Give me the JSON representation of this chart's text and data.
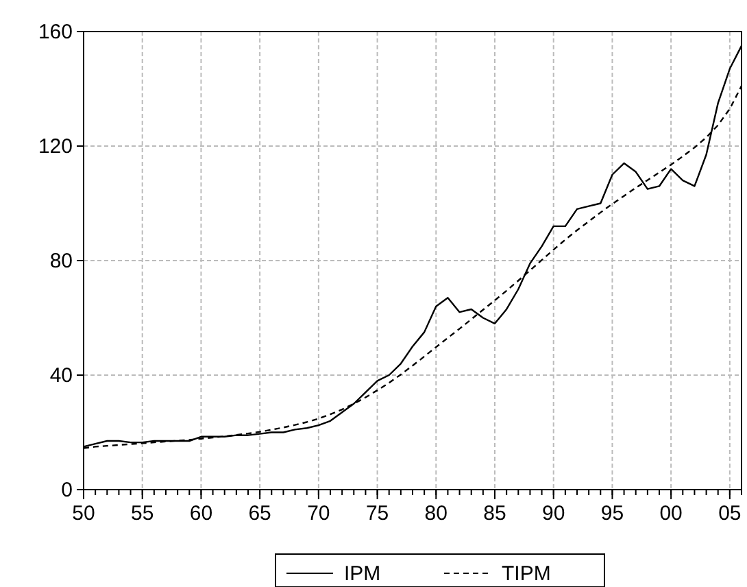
{
  "chart_data": {
    "type": "line",
    "x": [
      1950,
      1951,
      1952,
      1953,
      1954,
      1955,
      1956,
      1957,
      1958,
      1959,
      1960,
      1961,
      1962,
      1963,
      1964,
      1965,
      1966,
      1967,
      1968,
      1969,
      1970,
      1971,
      1972,
      1973,
      1974,
      1975,
      1976,
      1977,
      1978,
      1979,
      1980,
      1981,
      1982,
      1983,
      1984,
      1985,
      1986,
      1987,
      1988,
      1989,
      1990,
      1991,
      1992,
      1993,
      1994,
      1995,
      1996,
      1997,
      1998,
      1999,
      2000,
      2001,
      2002,
      2003,
      2004,
      2005,
      2006
    ],
    "series": [
      {
        "name": "IPM",
        "color": "#000000",
        "line_style": "solid",
        "values": [
          15,
          16,
          17,
          17,
          16.5,
          16.5,
          17,
          17,
          17,
          17,
          18.5,
          18.5,
          18.5,
          19,
          19,
          19.5,
          20,
          20,
          21,
          21.5,
          22.5,
          24,
          27,
          30,
          34,
          38,
          40,
          44,
          50,
          55,
          64,
          67,
          62,
          63,
          60,
          58,
          63,
          70,
          79,
          85,
          92,
          92,
          98,
          99,
          100,
          110,
          114,
          111,
          105,
          106,
          112,
          108,
          106,
          117,
          135,
          147,
          155
        ]
      },
      {
        "name": "TIPM",
        "color": "#000000",
        "line_style": "dashed",
        "values": [
          14.5,
          15,
          15.3,
          15.6,
          15.9,
          16.2,
          16.5,
          16.8,
          17.1,
          17.4,
          17.8,
          18.2,
          18.6,
          19.1,
          19.6,
          20.2,
          20.9,
          21.7,
          22.6,
          23.6,
          24.8,
          26.3,
          28,
          30,
          32.2,
          34.7,
          37.3,
          40.2,
          43.3,
          46.5,
          49.8,
          53,
          56.2,
          59.5,
          62.8,
          66.1,
          69.5,
          73,
          76.6,
          80.2,
          83.8,
          87.3,
          90.6,
          93.7,
          96.8,
          99.8,
          102.6,
          105.4,
          108.1,
          110.8,
          113.5,
          116.4,
          119.5,
          123,
          127.3,
          133,
          141
        ]
      }
    ],
    "xlim": [
      1950,
      2006
    ],
    "xticks": [
      {
        "value": 1950,
        "label": "50"
      },
      {
        "value": 1955,
        "label": "55"
      },
      {
        "value": 1960,
        "label": "60"
      },
      {
        "value": 1965,
        "label": "65"
      },
      {
        "value": 1970,
        "label": "70"
      },
      {
        "value": 1975,
        "label": "75"
      },
      {
        "value": 1980,
        "label": "80"
      },
      {
        "value": 1985,
        "label": "85"
      },
      {
        "value": 1990,
        "label": "90"
      },
      {
        "value": 1995,
        "label": "95"
      },
      {
        "value": 2000,
        "label": "00"
      },
      {
        "value": 2005,
        "label": "05"
      }
    ],
    "ylim": [
      0,
      160
    ],
    "yticks": [
      0,
      40,
      80,
      120,
      160
    ],
    "grid": true,
    "legend": "bottom"
  }
}
